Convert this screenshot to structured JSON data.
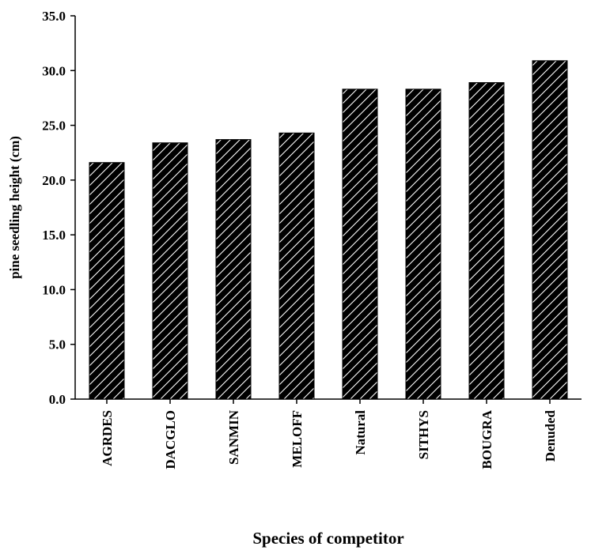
{
  "chart_data": {
    "type": "bar",
    "title": "",
    "xlabel": "Species of competitor",
    "ylabel": "pine seedling height (cm)",
    "categories": [
      "AGRDES",
      "DACGLO",
      "SANMIN",
      "MELOFF",
      "Natural",
      "SITHYS",
      "BOUGRA",
      "Denuded"
    ],
    "values": [
      21.6,
      23.4,
      23.7,
      24.3,
      28.3,
      28.3,
      28.9,
      30.9
    ],
    "ylim": [
      0,
      35
    ],
    "yticks": [
      "0.0",
      "5.0",
      "10.0",
      "15.0",
      "20.0",
      "25.0",
      "30.0",
      "35.0"
    ],
    "grid": false,
    "bar_fill": "hatched black",
    "colors": {
      "bar": "#000000",
      "hatch": "#ffffff",
      "axis": "#000000",
      "background": "#ffffff"
    }
  }
}
